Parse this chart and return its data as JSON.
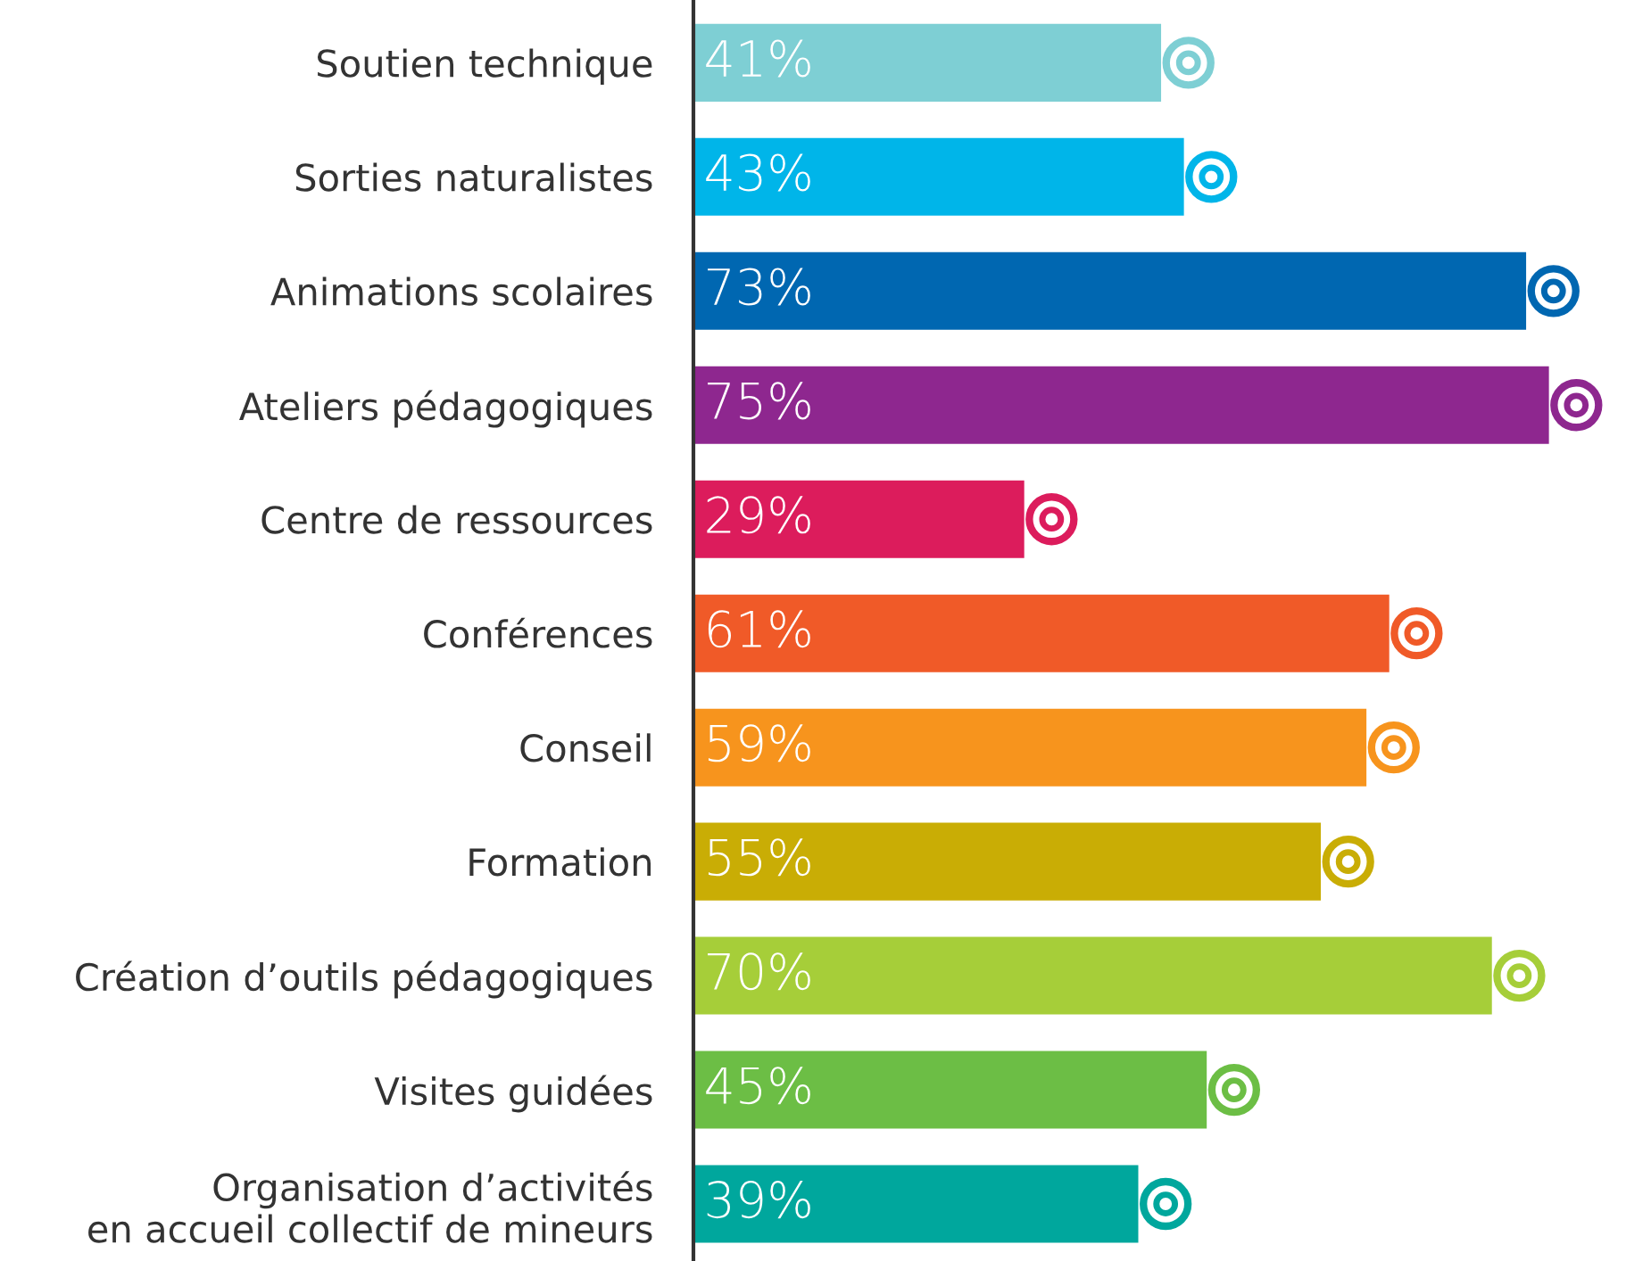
{
  "chart_data": {
    "type": "bar",
    "orientation": "horizontal",
    "data_labels": true,
    "grid": false,
    "legend": false,
    "categories": [
      "Soutien technique",
      "Sorties naturalistes",
      "Animations scolaires",
      "Ateliers pédagogiques",
      "Centre de ressources",
      "Conférences",
      "Conseil",
      "Formation",
      "Création d’outils pédagogiques",
      "Visites guidées",
      "Organisation d’activités\nen accueil collectif de mineurs"
    ],
    "values": [
      41,
      43,
      73,
      75,
      29,
      61,
      59,
      55,
      70,
      45,
      39
    ],
    "value_labels": [
      "41%",
      "43%",
      "73%",
      "75%",
      "29%",
      "61%",
      "59%",
      "55%",
      "70%",
      "45%",
      "39%"
    ],
    "colors": [
      "#7ecfd4",
      "#00b5e9",
      "#0067b1",
      "#8e278f",
      "#dc1c5c",
      "#f05a28",
      "#f7941d",
      "#c9ad05",
      "#a6ce39",
      "#6cbe45",
      "#00a79d"
    ]
  }
}
